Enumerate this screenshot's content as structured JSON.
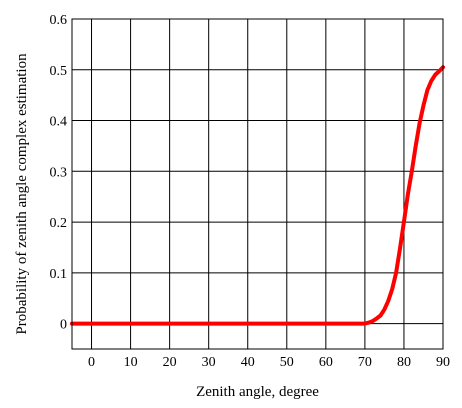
{
  "chart_data": {
    "type": "line",
    "xlabel": "Zenith angle, degree",
    "ylabel": "Probability of zenith angle complex estimation",
    "xlim": [
      -5,
      90
    ],
    "ylim": [
      -0.05,
      0.6
    ],
    "x_ticks": [
      0,
      10,
      20,
      30,
      40,
      50,
      60,
      70,
      80,
      90
    ],
    "y_ticks": [
      0,
      0.1,
      0.2,
      0.3,
      0.4,
      0.5,
      0.6
    ],
    "grid": true,
    "series": [
      {
        "color": "#ff0000",
        "x": [
          -5,
          0,
          10,
          20,
          30,
          40,
          50,
          60,
          70,
          71,
          72,
          73,
          74,
          75,
          76,
          77,
          78,
          79,
          80,
          81,
          82,
          83,
          84,
          85,
          86,
          87,
          88,
          89,
          90
        ],
        "y": [
          0,
          0,
          0,
          0,
          0,
          0,
          0,
          0,
          0,
          0.002,
          0.005,
          0.01,
          0.016,
          0.028,
          0.045,
          0.068,
          0.1,
          0.148,
          0.2,
          0.255,
          0.3,
          0.35,
          0.395,
          0.43,
          0.46,
          0.478,
          0.49,
          0.497,
          0.505
        ]
      }
    ]
  }
}
